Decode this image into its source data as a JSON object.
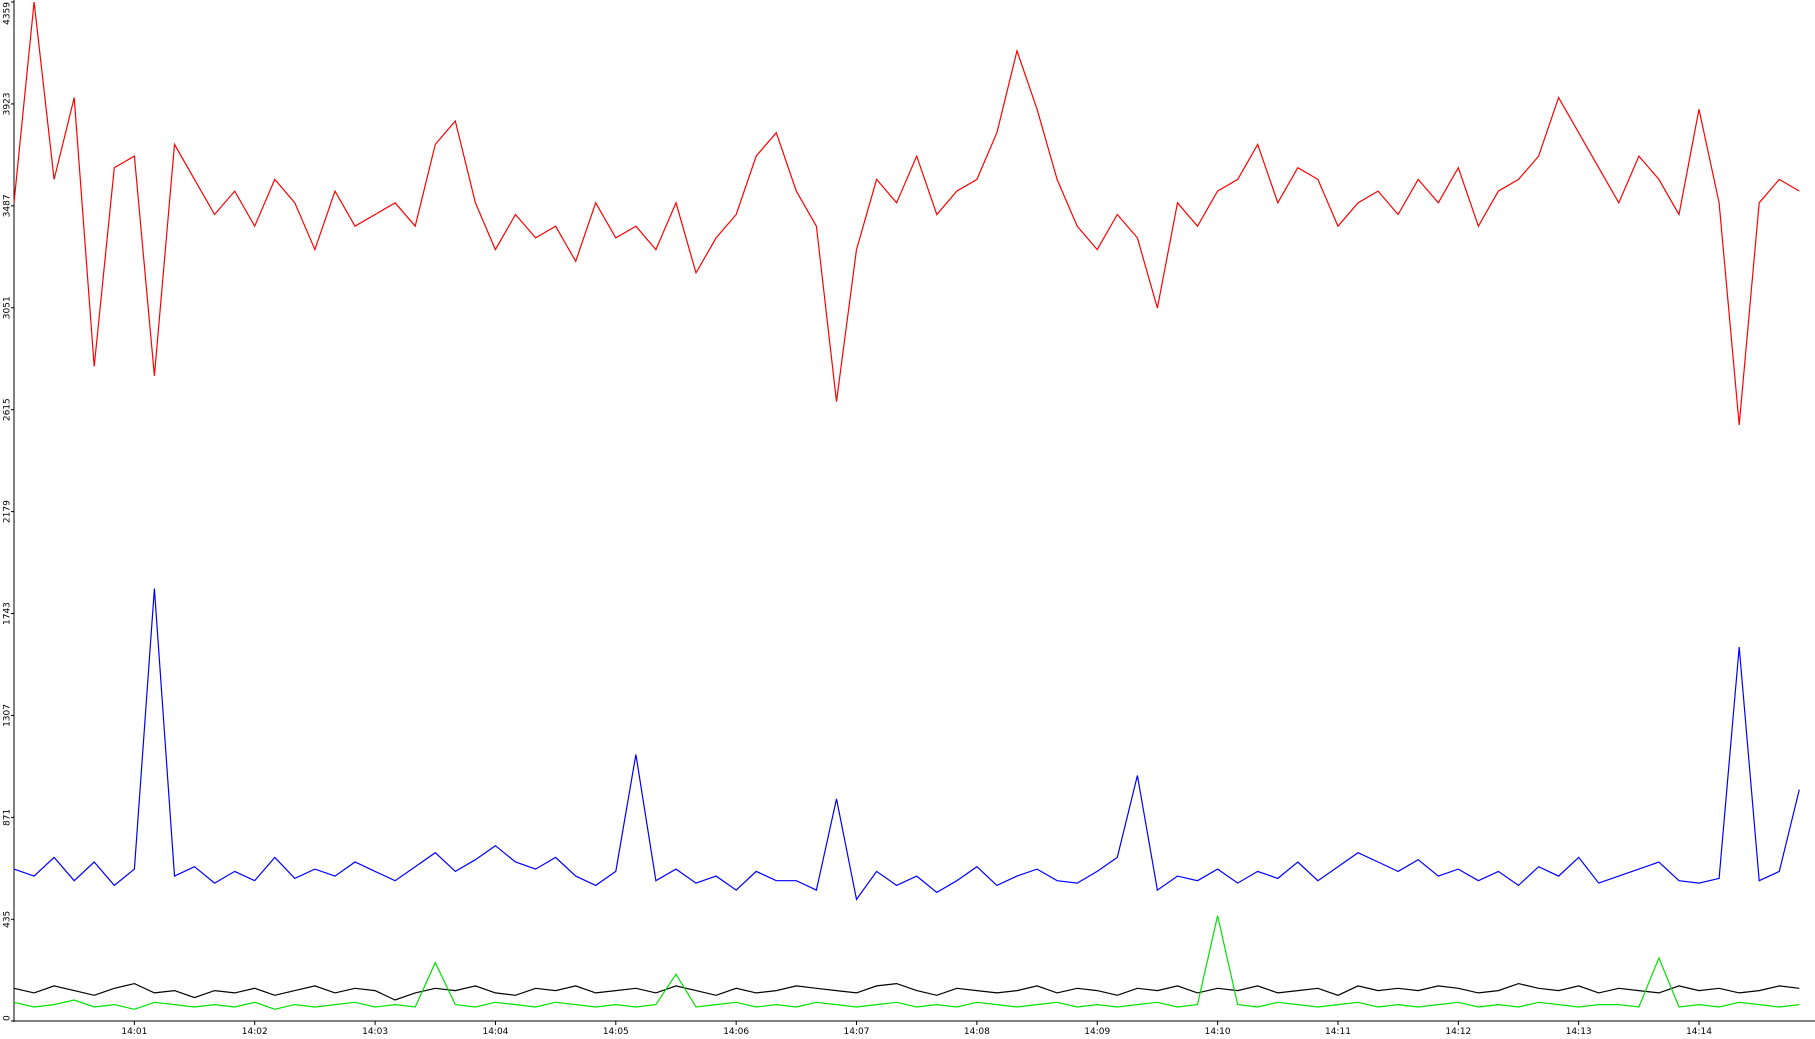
{
  "chart_data": {
    "type": "line",
    "categories": [
      null,
      null,
      null,
      null,
      null,
      null,
      "14:01",
      null,
      null,
      null,
      null,
      null,
      "14:02",
      null,
      null,
      null,
      null,
      null,
      "14:03",
      null,
      null,
      null,
      null,
      null,
      "14:04",
      null,
      null,
      null,
      null,
      null,
      "14:05",
      null,
      null,
      null,
      null,
      null,
      "14:06",
      null,
      null,
      null,
      null,
      null,
      "14:07",
      null,
      null,
      null,
      null,
      null,
      "14:08",
      null,
      null,
      null,
      null,
      null,
      "14:09",
      null,
      null,
      null,
      null,
      null,
      "14:10",
      null,
      null,
      null,
      null,
      null,
      "14:11",
      null,
      null,
      null,
      null,
      null,
      "14:12",
      null,
      null,
      null,
      null,
      null,
      "14:13",
      null,
      null,
      null,
      null,
      null,
      "14:14",
      null,
      null,
      null,
      null,
      null
    ],
    "series": [
      {
        "color": "#ff0000",
        "values": [
          3500,
          4359,
          3600,
          3950,
          2800,
          3650,
          3700,
          2760,
          3750,
          3600,
          3450,
          3550,
          3400,
          3600,
          3500,
          3300,
          3550,
          3400,
          3450,
          3500,
          3400,
          3750,
          3850,
          3500,
          3300,
          3450,
          3350,
          3400,
          3250,
          3500,
          3350,
          3400,
          3300,
          3500,
          3200,
          3350,
          3450,
          3700,
          3800,
          3550,
          3400,
          2650,
          3300,
          3600,
          3500,
          3700,
          3450,
          3550,
          3600,
          3800,
          4150,
          3900,
          3600,
          3400,
          3300,
          3450,
          3350,
          3050,
          3500,
          3400,
          3550,
          3600,
          3750,
          3500,
          3650,
          3600,
          3400,
          3500,
          3550,
          3450,
          3600,
          3500,
          3650,
          3400,
          3550,
          3600,
          3700,
          3950,
          3800,
          3650,
          3500,
          3700,
          3600,
          3450,
          3900,
          3500,
          2550,
          3500,
          3600,
          3550
        ]
      },
      {
        "color": "#0000ff",
        "values": [
          650,
          620,
          700,
          600,
          680,
          580,
          650,
          1850,
          620,
          660,
          590,
          640,
          600,
          700,
          610,
          650,
          620,
          680,
          640,
          600,
          660,
          720,
          640,
          690,
          750,
          680,
          650,
          700,
          620,
          580,
          640,
          1140,
          600,
          650,
          590,
          620,
          560,
          640,
          600,
          600,
          560,
          950,
          520,
          640,
          580,
          620,
          550,
          600,
          660,
          580,
          620,
          650,
          600,
          590,
          640,
          700,
          1050,
          560,
          620,
          600,
          650,
          590,
          640,
          610,
          680,
          600,
          660,
          720,
          680,
          640,
          690,
          620,
          650,
          600,
          640,
          580,
          660,
          620,
          700,
          590,
          620,
          650,
          680,
          600,
          590,
          610,
          1600,
          600,
          640,
          990
        ]
      },
      {
        "color": "#000000",
        "values": [
          140,
          120,
          150,
          130,
          110,
          140,
          160,
          120,
          130,
          100,
          130,
          120,
          140,
          110,
          130,
          150,
          120,
          140,
          130,
          90,
          120,
          140,
          130,
          150,
          120,
          110,
          140,
          130,
          150,
          120,
          130,
          140,
          120,
          150,
          130,
          110,
          140,
          120,
          130,
          150,
          140,
          130,
          120,
          150,
          160,
          130,
          110,
          140,
          130,
          120,
          130,
          150,
          120,
          140,
          130,
          110,
          140,
          130,
          150,
          120,
          140,
          130,
          150,
          120,
          130,
          140,
          110,
          150,
          130,
          140,
          130,
          150,
          140,
          120,
          130,
          160,
          140,
          130,
          150,
          120,
          140,
          130,
          120,
          150,
          130,
          140,
          120,
          130,
          150,
          140
        ]
      },
      {
        "color": "#00e000",
        "values": [
          80,
          60,
          70,
          90,
          60,
          70,
          50,
          80,
          70,
          60,
          70,
          60,
          80,
          50,
          70,
          60,
          70,
          80,
          60,
          70,
          60,
          250,
          70,
          60,
          80,
          70,
          60,
          80,
          70,
          60,
          70,
          60,
          70,
          200,
          60,
          70,
          80,
          60,
          70,
          60,
          80,
          70,
          60,
          70,
          80,
          60,
          70,
          60,
          80,
          70,
          60,
          70,
          80,
          60,
          70,
          60,
          70,
          80,
          60,
          70,
          450,
          70,
          60,
          80,
          70,
          60,
          70,
          80,
          60,
          70,
          60,
          70,
          80,
          60,
          70,
          60,
          80,
          70,
          60,
          70,
          70,
          60,
          270,
          60,
          70,
          60,
          80,
          70,
          60,
          70
        ]
      }
    ],
    "ylim": [
      0,
      4359
    ],
    "yticks": [
      0,
      435,
      871,
      1307,
      1743,
      2179,
      2615,
      3051,
      3487,
      3923,
      4359
    ]
  }
}
